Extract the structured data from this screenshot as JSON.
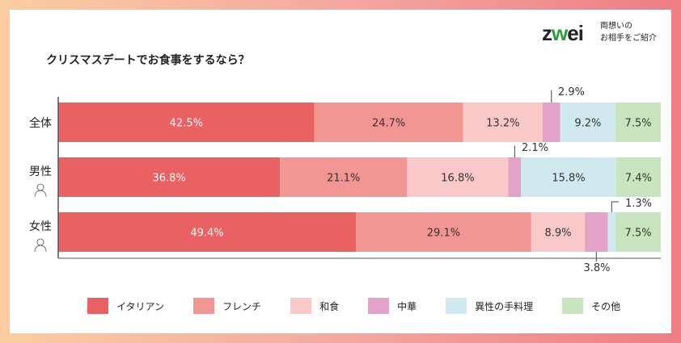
{
  "logo": {
    "brand": "zwei",
    "tagline_1": "両想いの",
    "tagline_2": "お相手をご紹介"
  },
  "chart_data": {
    "type": "bar",
    "stacked": true,
    "orientation": "horizontal",
    "title": "クリスマスデートでお食事をするなら？",
    "categories": [
      "全体",
      "男性",
      "女性"
    ],
    "unit": "%",
    "xlim": [
      0,
      100
    ],
    "legend_position": "bottom",
    "series": [
      {
        "name": "イタリアン",
        "color": "#ea6164",
        "values": [
          42.5,
          36.8,
          49.4
        ]
      },
      {
        "name": "フレンチ",
        "color": "#f29694",
        "values": [
          24.7,
          21.1,
          29.1
        ]
      },
      {
        "name": "和食",
        "color": "#f9c8c8",
        "values": [
          13.2,
          16.8,
          8.9
        ]
      },
      {
        "name": "中華",
        "color": "#e3a2c8",
        "values": [
          2.9,
          2.1,
          3.8
        ]
      },
      {
        "name": "異性の手料理",
        "color": "#cfe9ee",
        "values": [
          9.2,
          15.8,
          1.3
        ]
      },
      {
        "name": "その他",
        "color": "#c9e5bf",
        "values": [
          7.5,
          7.4,
          7.5
        ]
      }
    ]
  }
}
